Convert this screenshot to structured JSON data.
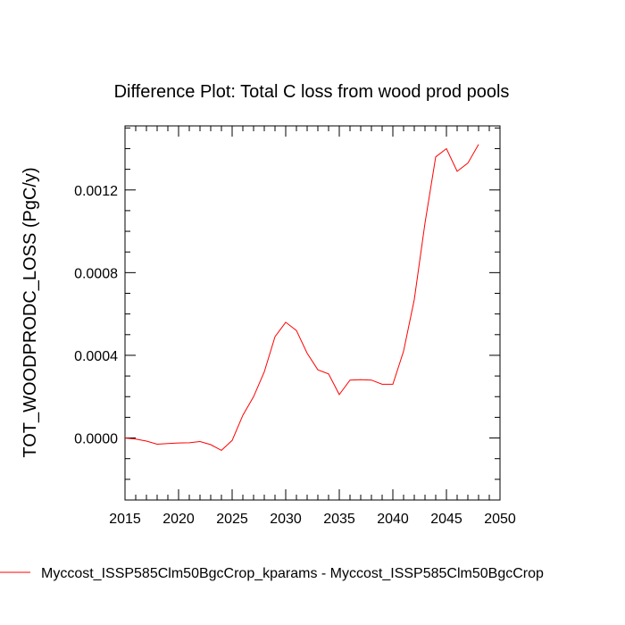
{
  "chart_data": {
    "type": "line",
    "title": "Difference Plot: Total C loss from wood prod pools",
    "xlabel": "",
    "ylabel": "TOT_WOODPRODC_LOSS  (PgC/y)",
    "xlim": [
      2015,
      2050
    ],
    "ylim": [
      -0.0003,
      0.00151
    ],
    "x_ticks": [
      2015,
      2020,
      2025,
      2030,
      2035,
      2040,
      2045,
      2050
    ],
    "x_tick_labels": [
      "2015",
      "2020",
      "2025",
      "2030",
      "2035",
      "2040",
      "2045",
      "2050"
    ],
    "y_ticks": [
      0.0,
      0.0004,
      0.0008,
      0.0012
    ],
    "y_tick_labels": [
      "0.0000",
      "0.0004",
      "0.0008",
      "0.0012"
    ],
    "grid": false,
    "legend_position": "bottom",
    "series": [
      {
        "name": "Myccost_ISSP585Clm50BgcCrop_kparams - Myccost_ISSP585Clm50BgcCrop",
        "color": "#ff0000",
        "x": [
          2015,
          2016,
          2017,
          2018,
          2019,
          2020,
          2021,
          2022,
          2023,
          2024,
          2025,
          2026,
          2027,
          2028,
          2029,
          2030,
          2031,
          2032,
          2033,
          2034,
          2035,
          2036,
          2037,
          2038,
          2039,
          2040,
          2041,
          2042,
          2043,
          2044,
          2045,
          2046,
          2047,
          2048
        ],
        "values": [
          0.0,
          -5e-06,
          -1.5e-05,
          -3e-05,
          -2.7e-05,
          -2.4e-05,
          -2.3e-05,
          -1.7e-05,
          -3.2e-05,
          -6e-05,
          -1.2e-05,
          0.00011,
          0.0002,
          0.00032,
          0.00049,
          0.00056,
          0.00052,
          0.00041,
          0.00033,
          0.00031,
          0.00021,
          0.00028,
          0.000282,
          0.00028,
          0.00026,
          0.00026,
          0.00042,
          0.00067,
          0.00104,
          0.00136,
          0.0014,
          0.00129,
          0.00133,
          0.00142
        ]
      }
    ]
  }
}
